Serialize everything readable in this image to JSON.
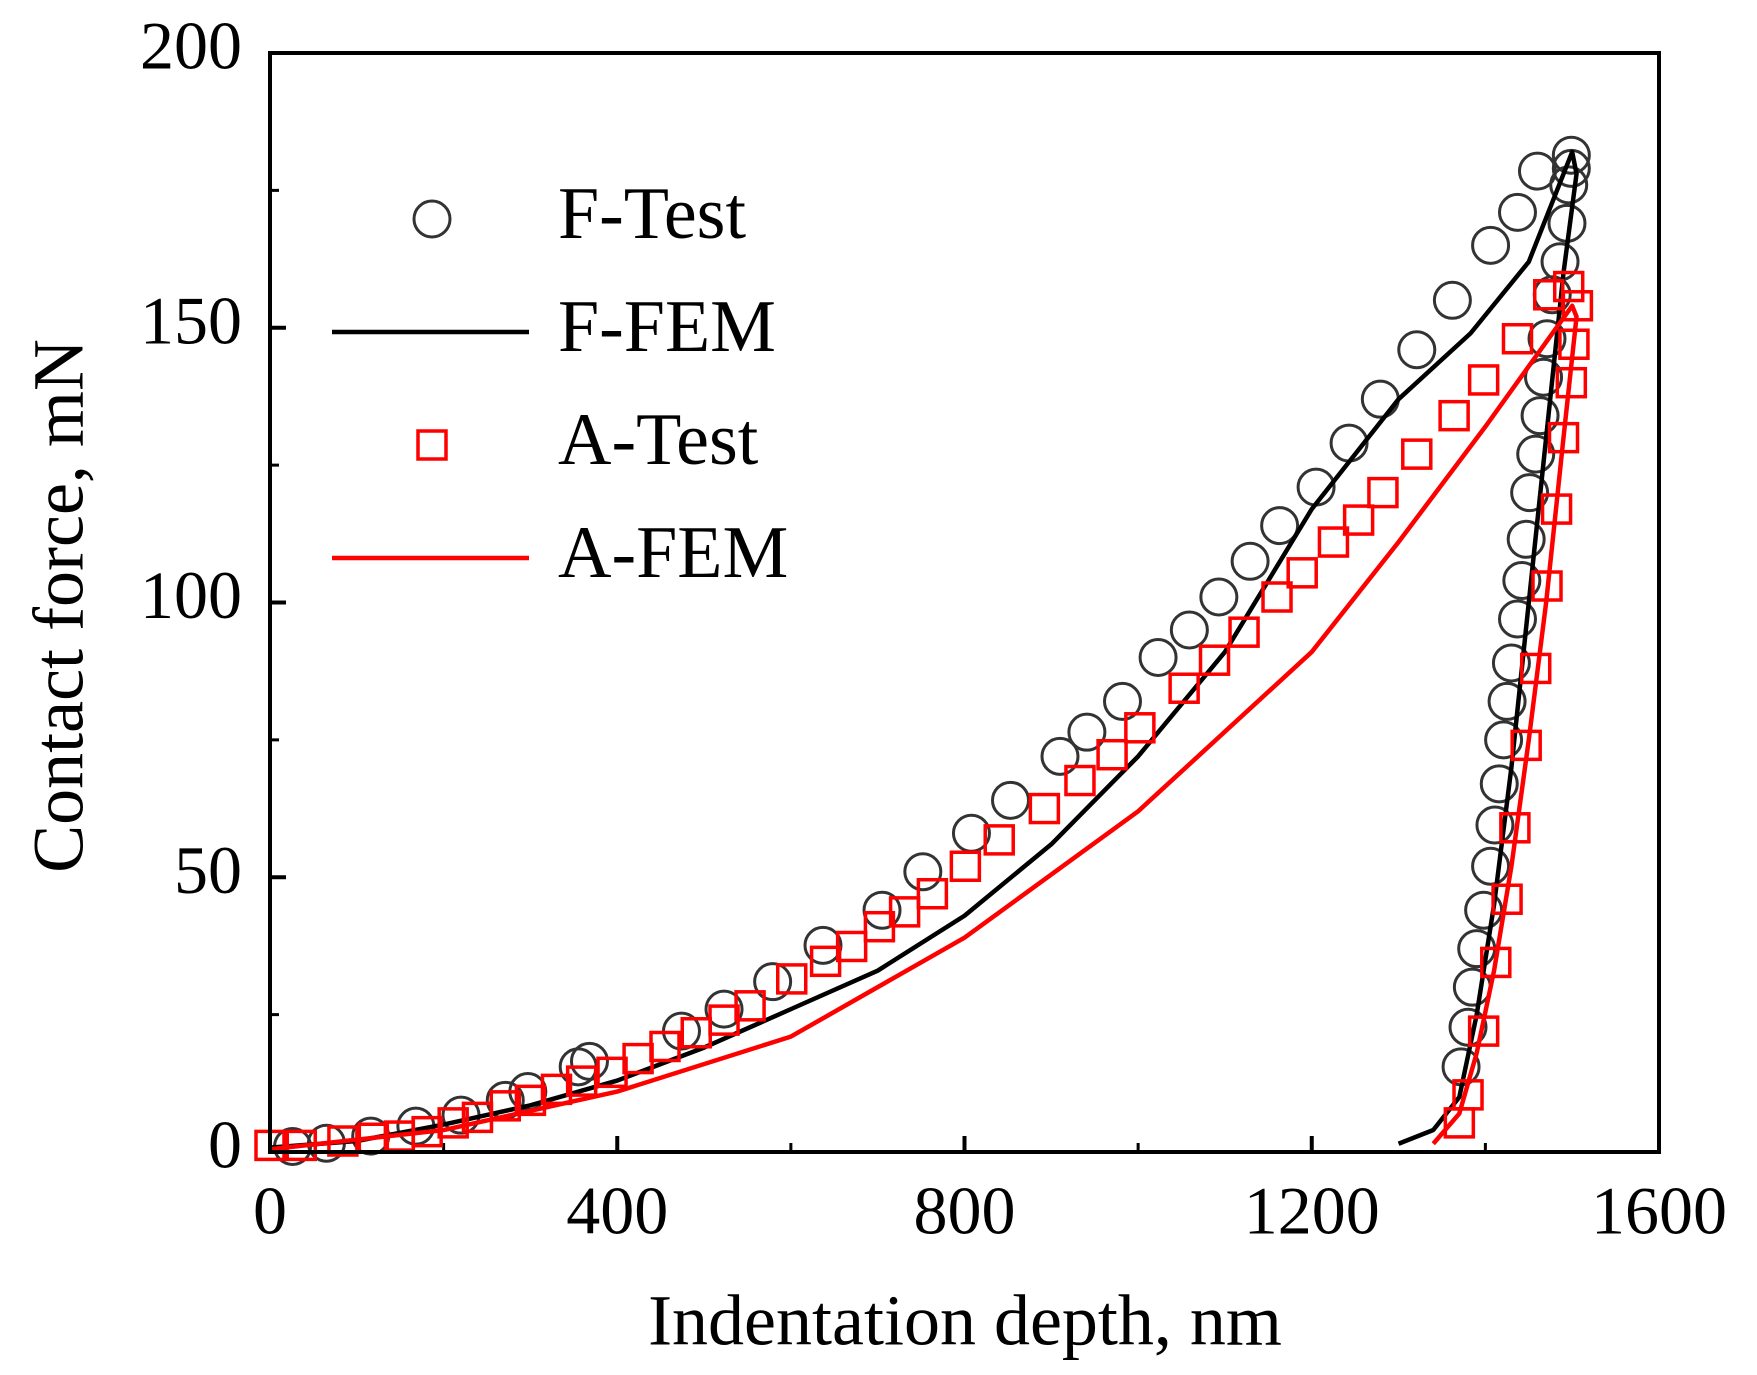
{
  "chart_data": {
    "type": "scatter",
    "x_label": "Indentation depth, nm",
    "y_label": "Contact force, mN",
    "xlim": [
      0,
      1600
    ],
    "ylim": [
      0,
      200
    ],
    "xticks": [
      0,
      400,
      800,
      1200,
      1600
    ],
    "yticks": [
      0,
      50,
      100,
      150,
      200
    ],
    "xticks_minor": [
      200,
      600,
      1000,
      1400
    ],
    "yticks_minor": [
      25,
      75,
      125,
      175
    ],
    "grid": false,
    "legend": "upper left",
    "series": [
      {
        "name": "F-Test",
        "color": "#333333",
        "mode": "markers",
        "marker": "circle",
        "x": [
          26,
          65,
          116,
          168,
          220,
          271,
          297,
          355,
          368,
          474,
          523,
          579,
          637,
          705,
          752,
          808,
          853,
          910,
          941,
          982,
          1023,
          1059,
          1093,
          1129,
          1163,
          1205,
          1243,
          1279,
          1321,
          1362,
          1406,
          1437,
          1460,
          1499,
          1499,
          1496,
          1494,
          1486,
          1477,
          1471,
          1467,
          1463,
          1458,
          1451,
          1447,
          1442,
          1437,
          1430,
          1425,
          1421,
          1416,
          1411,
          1406,
          1398,
          1390,
          1385,
          1380,
          1372
        ],
        "values": [
          1,
          1.6,
          2.9,
          4.7,
          6.7,
          9.4,
          11,
          15.5,
          16.5,
          22,
          26,
          31,
          37.6,
          44,
          51,
          58,
          64,
          72,
          76.4,
          82,
          90,
          95,
          101,
          107.5,
          114,
          121,
          129,
          137,
          146,
          155,
          165,
          171,
          178.5,
          181.4,
          179,
          176,
          169,
          162,
          156,
          148,
          141,
          134,
          127,
          120,
          111.5,
          104,
          97,
          89,
          82,
          75,
          67,
          59.5,
          52,
          44,
          37,
          30,
          22.7,
          15.5
        ]
      },
      {
        "name": "F-FEM",
        "color": "#000000",
        "mode": "line",
        "x": [
          0,
          100,
          200,
          300,
          400,
          500,
          600,
          700,
          800,
          900,
          1000,
          1100,
          1200,
          1300,
          1383,
          1450,
          1500,
          1505,
          1490,
          1470,
          1450,
          1430,
          1410,
          1390,
          1370,
          1340,
          1300
        ],
        "values": [
          0.8,
          2,
          5,
          8.5,
          13,
          19,
          26,
          33,
          43,
          56,
          72,
          91,
          117,
          137,
          149,
          162,
          182,
          178,
          160,
          130,
          100,
          70,
          45,
          25,
          10,
          4,
          1.5
        ]
      },
      {
        "name": "A-Test",
        "color": "#ff0000",
        "mode": "markers",
        "marker": "square",
        "x": [
          0,
          36,
          84,
          119,
          149,
          181,
          211,
          239,
          271,
          300,
          330,
          359,
          394,
          424,
          455,
          491,
          523,
          553,
          601,
          640,
          670,
          702,
          731,
          763,
          801,
          840,
          892,
          933,
          970,
          1002,
          1053,
          1088,
          1122,
          1160,
          1189,
          1225,
          1254,
          1282,
          1321,
          1364,
          1398,
          1437,
          1473,
          1496,
          1506,
          1502,
          1499,
          1490,
          1482,
          1471,
          1458,
          1447,
          1434,
          1425,
          1412,
          1398,
          1380,
          1370
        ],
        "values": [
          1.2,
          1.2,
          2,
          2.5,
          2.9,
          3.7,
          5.3,
          6.3,
          8.4,
          9.4,
          11.4,
          12.9,
          14.5,
          17,
          19.2,
          21.7,
          24,
          26.6,
          31.5,
          34.7,
          37.4,
          41,
          43.7,
          47,
          52,
          56.8,
          62.5,
          67.6,
          72.3,
          77.2,
          84.4,
          89.5,
          94.6,
          101,
          105.4,
          111,
          115,
          120,
          127,
          134,
          140.5,
          148,
          156,
          157.5,
          154,
          147,
          140,
          130,
          117,
          103,
          88,
          74,
          59,
          46,
          34.5,
          22,
          10.4,
          5.3
        ]
      },
      {
        "name": "A-FEM",
        "color": "#ff0000",
        "mode": "line",
        "x": [
          0,
          200,
          400,
          600,
          800,
          1000,
          1200,
          1300,
          1400,
          1500,
          1505,
          1490,
          1470,
          1450,
          1430,
          1410,
          1390,
          1370,
          1340
        ],
        "values": [
          0.5,
          4,
          11,
          21,
          39,
          62,
          91,
          111,
          132,
          154,
          152,
          130,
          100,
          75,
          52,
          33,
          18,
          7,
          1.5
        ]
      }
    ]
  }
}
